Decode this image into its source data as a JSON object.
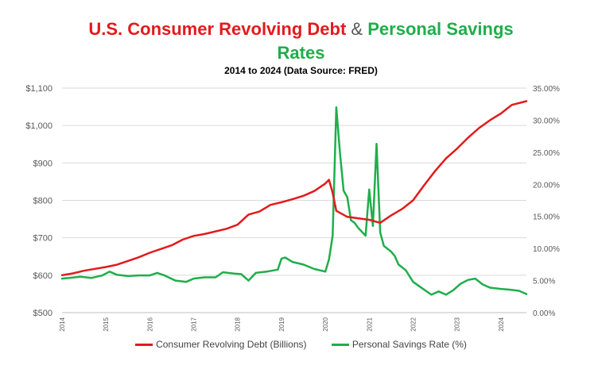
{
  "title": {
    "part1": "U.S. Consumer Revolving Debt",
    "amp": "&",
    "part2": "Personal Savings",
    "line2": "Rates"
  },
  "subtitle": "2014 to 2024 (Data Source: FRED)",
  "colors": {
    "debt": "#e31a1c",
    "savings": "#1fae4b",
    "axis_text": "#595959",
    "grid": "#d9d9d9"
  },
  "chart_data": {
    "type": "line",
    "title": "U.S. Consumer Revolving Debt & Personal Savings Rates",
    "subtitle": "2014 to 2024 (Data Source: FRED)",
    "x_ticks": [
      "2014",
      "2015",
      "2016",
      "2017",
      "2018",
      "2019",
      "2020",
      "2021",
      "2022",
      "2023",
      "2024"
    ],
    "xlim": [
      "2014-01",
      "2024-08"
    ],
    "y_left": {
      "ticks": [
        "$500",
        "$600",
        "$700",
        "$800",
        "$900",
        "$1,000",
        "$1,100"
      ],
      "ylim": [
        500,
        1100
      ]
    },
    "y_right": {
      "ticks": [
        "0.00%",
        "5.00%",
        "10.00%",
        "15.00%",
        "20.00%",
        "25.00%",
        "30.00%",
        "35.00%"
      ],
      "ylim": [
        0,
        35
      ]
    },
    "grid": true,
    "legend": "bottom",
    "series": [
      {
        "name": "Consumer Revolving Debt (Billions)",
        "axis": "left",
        "points": [
          [
            "2014-01",
            600
          ],
          [
            "2014-04",
            605
          ],
          [
            "2014-07",
            612
          ],
          [
            "2014-10",
            617
          ],
          [
            "2015-01",
            622
          ],
          [
            "2015-04",
            628
          ],
          [
            "2015-07",
            638
          ],
          [
            "2015-10",
            648
          ],
          [
            "2016-01",
            660
          ],
          [
            "2016-04",
            670
          ],
          [
            "2016-07",
            680
          ],
          [
            "2016-10",
            695
          ],
          [
            "2017-01",
            705
          ],
          [
            "2017-04",
            710
          ],
          [
            "2017-07",
            717
          ],
          [
            "2017-10",
            724
          ],
          [
            "2018-01",
            735
          ],
          [
            "2018-04",
            762
          ],
          [
            "2018-07",
            770
          ],
          [
            "2018-10",
            788
          ],
          [
            "2019-01",
            795
          ],
          [
            "2019-04",
            803
          ],
          [
            "2019-07",
            812
          ],
          [
            "2019-10",
            825
          ],
          [
            "2020-01",
            845
          ],
          [
            "2020-02",
            855
          ],
          [
            "2020-03",
            820
          ],
          [
            "2020-04",
            772
          ],
          [
            "2020-07",
            756
          ],
          [
            "2020-10",
            752
          ],
          [
            "2021-01",
            748
          ],
          [
            "2021-04",
            740
          ],
          [
            "2021-07",
            760
          ],
          [
            "2021-10",
            777
          ],
          [
            "2022-01",
            800
          ],
          [
            "2022-04",
            840
          ],
          [
            "2022-07",
            878
          ],
          [
            "2022-10",
            912
          ],
          [
            "2023-01",
            938
          ],
          [
            "2023-04",
            967
          ],
          [
            "2023-07",
            993
          ],
          [
            "2023-10",
            1014
          ],
          [
            "2024-01",
            1032
          ],
          [
            "2024-04",
            1055
          ],
          [
            "2024-08",
            1065
          ]
        ]
      },
      {
        "name": "Personal Savings Rate (%)",
        "axis": "right",
        "points": [
          [
            "2014-01",
            5.3
          ],
          [
            "2014-03",
            5.4
          ],
          [
            "2014-06",
            5.6
          ],
          [
            "2014-09",
            5.4
          ],
          [
            "2014-12",
            5.8
          ],
          [
            "2015-02",
            6.4
          ],
          [
            "2015-04",
            5.9
          ],
          [
            "2015-07",
            5.7
          ],
          [
            "2015-10",
            5.8
          ],
          [
            "2016-01",
            5.8
          ],
          [
            "2016-03",
            6.2
          ],
          [
            "2016-05",
            5.8
          ],
          [
            "2016-08",
            5.0
          ],
          [
            "2016-11",
            4.8
          ],
          [
            "2017-01",
            5.3
          ],
          [
            "2017-04",
            5.5
          ],
          [
            "2017-07",
            5.5
          ],
          [
            "2017-09",
            6.3
          ],
          [
            "2017-12",
            6.1
          ],
          [
            "2018-02",
            6.0
          ],
          [
            "2018-04",
            5.0
          ],
          [
            "2018-06",
            6.2
          ],
          [
            "2018-09",
            6.4
          ],
          [
            "2018-12",
            6.7
          ],
          [
            "2019-01",
            8.4
          ],
          [
            "2019-02",
            8.6
          ],
          [
            "2019-04",
            7.9
          ],
          [
            "2019-07",
            7.5
          ],
          [
            "2019-10",
            6.8
          ],
          [
            "2020-01",
            6.4
          ],
          [
            "2020-02",
            8.3
          ],
          [
            "2020-03",
            12.0
          ],
          [
            "2020-04",
            32.0
          ],
          [
            "2020-05",
            24.9
          ],
          [
            "2020-06",
            19.0
          ],
          [
            "2020-07",
            18.0
          ],
          [
            "2020-08",
            14.4
          ],
          [
            "2020-09",
            14.0
          ],
          [
            "2020-10",
            13.2
          ],
          [
            "2020-12",
            12.0
          ],
          [
            "2021-01",
            19.2
          ],
          [
            "2021-02",
            13.5
          ],
          [
            "2021-03",
            26.3
          ],
          [
            "2021-04",
            12.5
          ],
          [
            "2021-05",
            10.4
          ],
          [
            "2021-07",
            9.5
          ],
          [
            "2021-08",
            8.8
          ],
          [
            "2021-09",
            7.5
          ],
          [
            "2021-11",
            6.6
          ],
          [
            "2022-01",
            4.8
          ],
          [
            "2022-03",
            4.0
          ],
          [
            "2022-06",
            2.8
          ],
          [
            "2022-08",
            3.3
          ],
          [
            "2022-10",
            2.8
          ],
          [
            "2022-12",
            3.5
          ],
          [
            "2023-02",
            4.5
          ],
          [
            "2023-04",
            5.1
          ],
          [
            "2023-06",
            5.3
          ],
          [
            "2023-08",
            4.4
          ],
          [
            "2023-10",
            3.9
          ],
          [
            "2024-01",
            3.7
          ],
          [
            "2024-03",
            3.6
          ],
          [
            "2024-06",
            3.4
          ],
          [
            "2024-08",
            2.9
          ]
        ]
      }
    ]
  }
}
